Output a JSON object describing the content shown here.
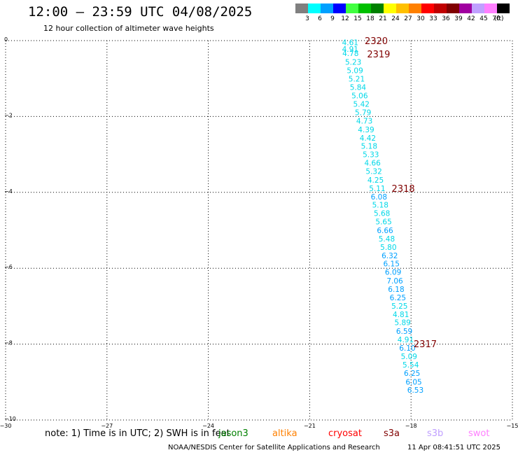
{
  "title": "12:00 – 23:59 UTC 04/08/2025",
  "subtitle": "12 hour collection of altimeter wave heights",
  "legend": {
    "unit": "(ft)",
    "items": [
      {
        "label": "3",
        "color": "#808080"
      },
      {
        "label": "6",
        "color": "#00ffff"
      },
      {
        "label": "9",
        "color": "#00a0ff"
      },
      {
        "label": "12",
        "color": "#0000ff"
      },
      {
        "label": "15",
        "color": "#40ff40"
      },
      {
        "label": "18",
        "color": "#00c000"
      },
      {
        "label": "21",
        "color": "#008000"
      },
      {
        "label": "24",
        "color": "#ffff00"
      },
      {
        "label": "27",
        "color": "#ffc000"
      },
      {
        "label": "30",
        "color": "#ff8000"
      },
      {
        "label": "33",
        "color": "#ff0000"
      },
      {
        "label": "36",
        "color": "#c00000"
      },
      {
        "label": "39",
        "color": "#800000"
      },
      {
        "label": "42",
        "color": "#a000a0"
      },
      {
        "label": "45",
        "color": "#c0a0ff"
      },
      {
        "label": "70",
        "color": "#ff80ff"
      },
      {
        "label": "",
        "color": "#000000"
      }
    ]
  },
  "axes": {
    "lon_range": [
      -30,
      -15
    ],
    "lat_range": [
      -10,
      0
    ],
    "lon_ticks": [
      {
        "value": -30,
        "label": "−30"
      },
      {
        "value": -27,
        "label": "−27"
      },
      {
        "value": -24,
        "label": "−24"
      },
      {
        "value": -21,
        "label": "−21"
      },
      {
        "value": -18,
        "label": "−18"
      },
      {
        "value": -15,
        "label": "−15"
      }
    ],
    "lat_ticks": [
      {
        "value": 0,
        "label": "0"
      },
      {
        "value": -2,
        "label": "−2"
      },
      {
        "value": -4,
        "label": "−4"
      },
      {
        "value": -6,
        "label": "−6"
      },
      {
        "value": -8,
        "label": "−8"
      },
      {
        "value": -10,
        "label": "−10"
      }
    ]
  },
  "wave_heights": [
    {
      "lon": -19.8,
      "lat": -0.05,
      "value": "4.61"
    },
    {
      "lon": -19.8,
      "lat": -0.22,
      "value": "4.91"
    },
    {
      "lon": -19.79,
      "lat": -0.33,
      "value": "4.78"
    },
    {
      "lon": -19.71,
      "lat": -0.56,
      "value": "5.23"
    },
    {
      "lon": -19.66,
      "lat": -0.78,
      "value": "5.09"
    },
    {
      "lon": -19.61,
      "lat": -1.01,
      "value": "5.21"
    },
    {
      "lon": -19.57,
      "lat": -1.23,
      "value": "5.84"
    },
    {
      "lon": -19.52,
      "lat": -1.45,
      "value": "5.06"
    },
    {
      "lon": -19.47,
      "lat": -1.67,
      "value": "5.42"
    },
    {
      "lon": -19.42,
      "lat": -1.89,
      "value": "5.79"
    },
    {
      "lon": -19.38,
      "lat": -2.11,
      "value": "4.73"
    },
    {
      "lon": -19.33,
      "lat": -2.34,
      "value": "4.39"
    },
    {
      "lon": -19.28,
      "lat": -2.56,
      "value": "4.42"
    },
    {
      "lon": -19.24,
      "lat": -2.78,
      "value": "5.18"
    },
    {
      "lon": -19.19,
      "lat": -3.0,
      "value": "5.33"
    },
    {
      "lon": -19.14,
      "lat": -3.22,
      "value": "4.66"
    },
    {
      "lon": -19.1,
      "lat": -3.44,
      "value": "5.32"
    },
    {
      "lon": -19.05,
      "lat": -3.67,
      "value": "4.25"
    },
    {
      "lon": -19.0,
      "lat": -3.89,
      "value": "5.11"
    },
    {
      "lon": -18.95,
      "lat": -4.11,
      "value": "6.08"
    },
    {
      "lon": -18.91,
      "lat": -4.33,
      "value": "5.18"
    },
    {
      "lon": -18.86,
      "lat": -4.55,
      "value": "5.68"
    },
    {
      "lon": -18.81,
      "lat": -4.77,
      "value": "5.65"
    },
    {
      "lon": -18.77,
      "lat": -5.0,
      "value": "6.66"
    },
    {
      "lon": -18.72,
      "lat": -5.22,
      "value": "5.48"
    },
    {
      "lon": -18.67,
      "lat": -5.44,
      "value": "5.80"
    },
    {
      "lon": -18.63,
      "lat": -5.66,
      "value": "6.32"
    },
    {
      "lon": -18.58,
      "lat": -5.88,
      "value": "6.15"
    },
    {
      "lon": -18.53,
      "lat": -6.1,
      "value": "6.09"
    },
    {
      "lon": -18.48,
      "lat": -6.33,
      "value": "7.06"
    },
    {
      "lon": -18.44,
      "lat": -6.55,
      "value": "6.18"
    },
    {
      "lon": -18.39,
      "lat": -6.77,
      "value": "6.25"
    },
    {
      "lon": -18.34,
      "lat": -6.99,
      "value": "5.25"
    },
    {
      "lon": -18.3,
      "lat": -7.21,
      "value": "4.81"
    },
    {
      "lon": -18.25,
      "lat": -7.43,
      "value": "5.89"
    },
    {
      "lon": -18.2,
      "lat": -7.66,
      "value": "6.59"
    },
    {
      "lon": -18.16,
      "lat": -7.88,
      "value": "4.91"
    },
    {
      "lon": -18.11,
      "lat": -8.1,
      "value": "6.10"
    },
    {
      "lon": -18.06,
      "lat": -8.32,
      "value": "5.09"
    },
    {
      "lon": -18.01,
      "lat": -8.54,
      "value": "5.54"
    },
    {
      "lon": -17.97,
      "lat": -8.76,
      "value": "6.25"
    },
    {
      "lon": -17.92,
      "lat": -8.99,
      "value": "6.05"
    },
    {
      "lon": -17.87,
      "lat": -9.21,
      "value": "6.53"
    }
  ],
  "pass_labels": [
    {
      "lon": -19.03,
      "lat": -0.0,
      "label": "2320"
    },
    {
      "lon": -18.96,
      "lat": -0.35,
      "label": "2319"
    },
    {
      "lon": -18.23,
      "lat": -3.89,
      "label": "2318"
    },
    {
      "lon": -17.58,
      "lat": -7.99,
      "label": "2317"
    }
  ],
  "note": "note:  1) Time is in UTC;  2) SWH is in feet",
  "satellites": [
    {
      "name": "jason3",
      "color": "#008000"
    },
    {
      "name": "altika",
      "color": "#ff8000"
    },
    {
      "name": "cryosat",
      "color": "#ff0000"
    },
    {
      "name": "s3a",
      "color": "#800000"
    },
    {
      "name": "s3b",
      "color": "#c0a0ff"
    },
    {
      "name": "swot",
      "color": "#ff80ff"
    }
  ],
  "credit": "NOAA/NESDIS Center for Satellite Applications and Research",
  "timestamp": "11 Apr 08:41:51 UTC 2025"
}
